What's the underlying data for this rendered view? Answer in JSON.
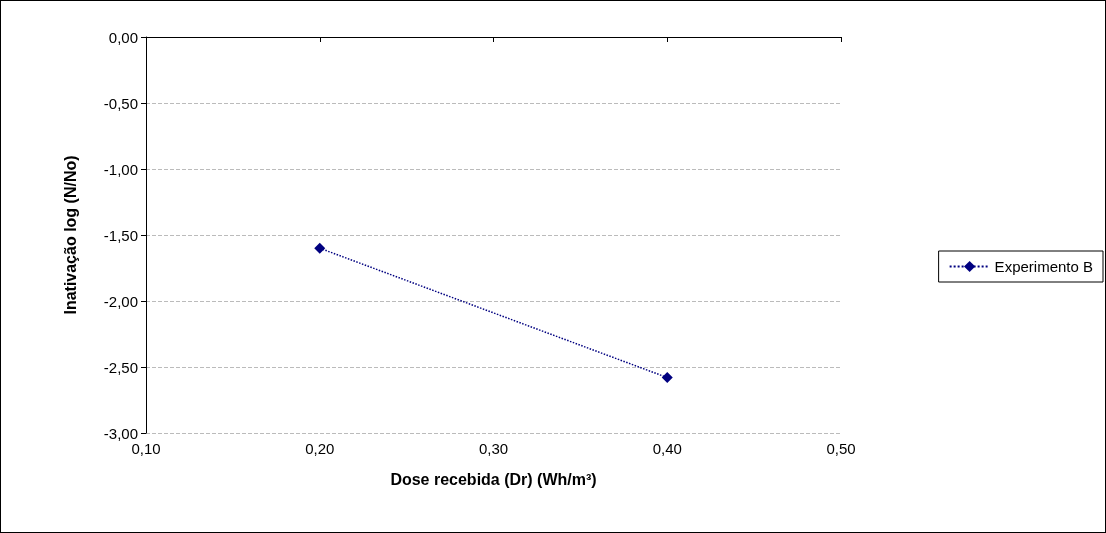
{
  "chart_data": {
    "type": "line",
    "xlabel": "Dose recebida (Dr) (Wh/m³)",
    "ylabel": "Inativação log (N/No)",
    "x": [
      0.2,
      0.4
    ],
    "series": [
      {
        "name": "Experimento B",
        "color": "#000080",
        "values": [
          -1.6,
          -2.58
        ]
      }
    ],
    "xlim": [
      0.1,
      0.5
    ],
    "xticks": [
      {
        "value": 0.1,
        "label": "0,10"
      },
      {
        "value": 0.2,
        "label": "0,20"
      },
      {
        "value": 0.3,
        "label": "0,30"
      },
      {
        "value": 0.4,
        "label": "0,40"
      },
      {
        "value": 0.5,
        "label": "0,50"
      }
    ],
    "ylim": [
      -3,
      0
    ],
    "yticks": [
      {
        "value": -3,
        "label": "-3,00"
      },
      {
        "value": -2.5,
        "label": "-2,50"
      },
      {
        "value": -2,
        "label": "-2,00"
      },
      {
        "value": -1.5,
        "label": "-1,50"
      },
      {
        "value": -1,
        "label": "-1,00"
      },
      {
        "value": -0.5,
        "label": "-0,50"
      },
      {
        "value": 0,
        "label": "0,00"
      }
    ],
    "grid": "y",
    "legend": "right",
    "marker": "diamond",
    "line_style": "dotted"
  }
}
